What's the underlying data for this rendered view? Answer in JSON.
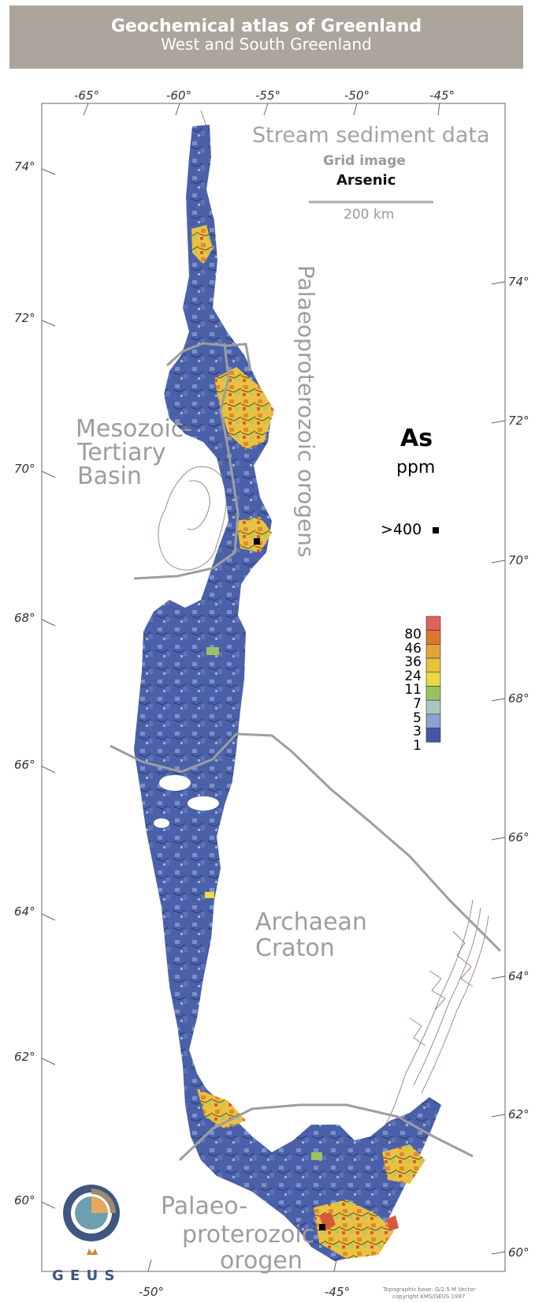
{
  "header": {
    "title": "Geochemical atlas of Greenland",
    "subtitle": "West and South Greenland"
  },
  "map": {
    "top_longitudes": [
      "-65°",
      "-60°",
      "-55°",
      "-50°",
      "-45°"
    ],
    "bottom_longitudes": [
      "-50°",
      "-45°"
    ],
    "left_latitudes": [
      "74°",
      "72°",
      "70°",
      "68°",
      "66°",
      "64°",
      "62°",
      "60°"
    ],
    "right_latitudes": [
      "74°",
      "72°",
      "70°",
      "68°",
      "66°",
      "64°",
      "62°",
      "60°"
    ],
    "info": {
      "line1": "Stream sediment data",
      "line2": "Grid image",
      "line3": "Arsenic",
      "scale": "200 km"
    },
    "regions": {
      "palaeo_orogens": "Palaeoproterozoic orogens",
      "mesozoic_1": "Mesozoic-",
      "mesozoic_2": "Tertiary",
      "mesozoic_3": "Basin",
      "archaean_1": "Archaean",
      "archaean_2": "Craton",
      "palaeo_orogen_1": "Palaeo-",
      "palaeo_orogen_2": "proterozoic",
      "palaeo_orogen_3": "orogen"
    },
    "legend": {
      "element": "As",
      "unit": "ppm",
      "max_label": ">400",
      "classes": [
        "80",
        "46",
        "36",
        "24",
        "11",
        "7",
        "5",
        "3",
        "1"
      ],
      "colors": [
        "#e0605a",
        "#d9772e",
        "#e1a43a",
        "#e7c33b",
        "#e9da43",
        "#9cc260",
        "#a8c6c0",
        "#8e9fd2",
        "#4258a3"
      ]
    },
    "logo_text": "G E U S",
    "credit_1": "Topographic base: G/2.5 M Vector",
    "credit_2": "copyright KMS/GEUS 1997"
  }
}
